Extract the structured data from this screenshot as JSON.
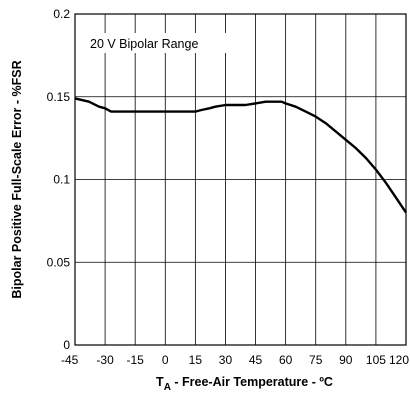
{
  "chart_data": {
    "type": "line",
    "xlabel_main": "T",
    "xlabel_sub": "A",
    "xlabel_rest": " - Free-Air Temperature - ºC",
    "ylabel": "Bipolar Positive Full-Scale Error - %FSR",
    "annotation": "20 V Bipolar Range",
    "xlim": [
      -45,
      120
    ],
    "ylim": [
      0,
      0.2
    ],
    "x_ticks": [
      "-45",
      "-30",
      "-15",
      "0",
      "15",
      "30",
      "45",
      "60",
      "75",
      "90",
      "105",
      "120"
    ],
    "y_ticks": [
      "0",
      "0.05",
      "0.1",
      "0.15",
      "0.2"
    ],
    "grid": true,
    "series": [
      {
        "x": [
          -45,
          -38,
          -33,
          -30,
          -27,
          -22,
          -15,
          -5,
          5,
          10,
          15,
          18,
          22,
          25,
          30,
          35,
          40,
          45,
          50,
          55,
          58,
          60,
          65,
          70,
          75,
          80,
          85,
          90,
          95,
          100,
          105,
          110,
          115,
          120
        ],
        "values": [
          0.149,
          0.147,
          0.144,
          0.143,
          0.141,
          0.141,
          0.141,
          0.141,
          0.141,
          0.141,
          0.141,
          0.142,
          0.143,
          0.144,
          0.145,
          0.145,
          0.145,
          0.146,
          0.147,
          0.147,
          0.147,
          0.146,
          0.144,
          0.141,
          0.138,
          0.134,
          0.129,
          0.124,
          0.119,
          0.113,
          0.106,
          0.098,
          0.089,
          0.08
        ]
      }
    ]
  }
}
